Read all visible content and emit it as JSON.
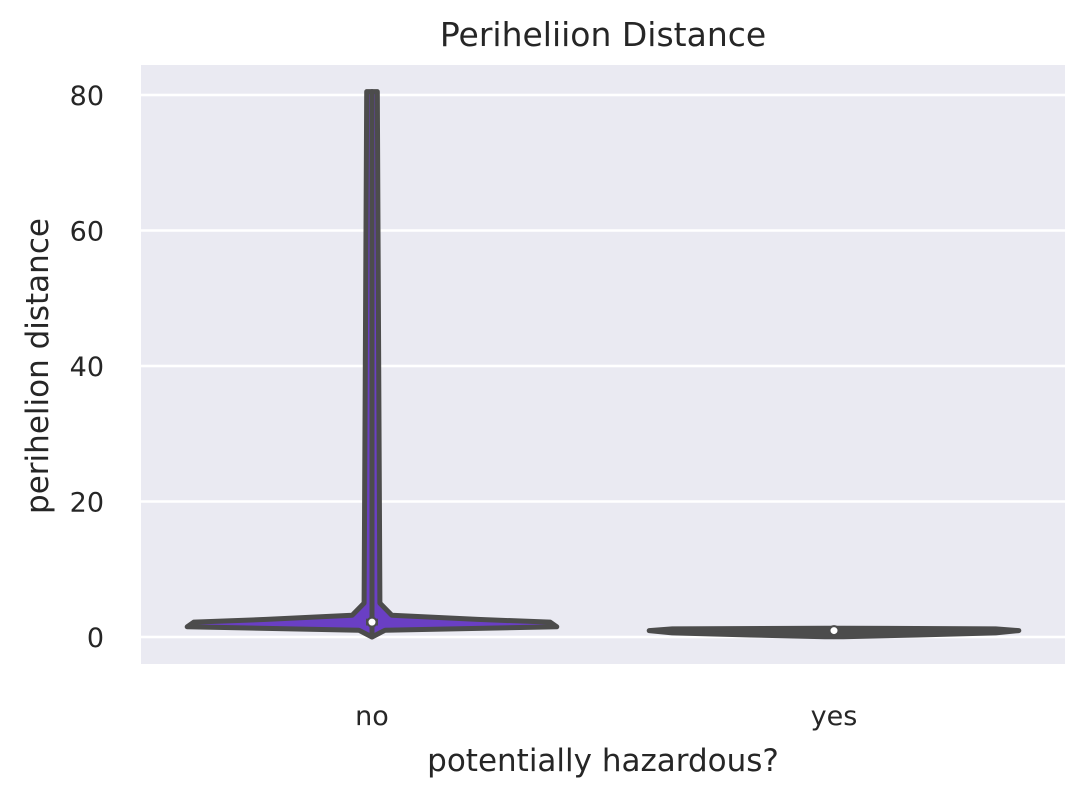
{
  "chart_data": {
    "type": "violin",
    "title": "Periheliion Distance",
    "xlabel": "potentially hazardous?",
    "ylabel": "perihelion distance",
    "ylim": [
      -4,
      84.5
    ],
    "yticks": [
      0,
      20,
      40,
      60,
      80
    ],
    "grid": true,
    "background": "#eaeaf2",
    "categories": [
      "no",
      "yes"
    ],
    "series": [
      {
        "category": "no",
        "min": 0.0,
        "max": 80.5,
        "q1": 1.7,
        "median": 2.2,
        "q3": 2.7,
        "density_profile": [
          [
            0.0,
            0.0
          ],
          [
            1.0,
            0.02
          ],
          [
            1.5,
            0.28
          ],
          [
            2.2,
            0.27
          ],
          [
            2.6,
            0.16
          ],
          [
            3.2,
            0.03
          ],
          [
            5.0,
            0.012
          ],
          [
            80.5,
            0.008
          ]
        ],
        "fill_color": "#6a3fc4"
      },
      {
        "category": "yes",
        "min": 0.05,
        "max": 1.3,
        "q1": 0.75,
        "median": 0.95,
        "q3": 1.05,
        "density_profile": [
          [
            0.05,
            0.02
          ],
          [
            0.3,
            0.18
          ],
          [
            0.6,
            0.35
          ],
          [
            0.95,
            0.4
          ],
          [
            1.2,
            0.35
          ],
          [
            1.3,
            0.02
          ]
        ],
        "fill_color": "#4c4c4c"
      }
    ]
  }
}
